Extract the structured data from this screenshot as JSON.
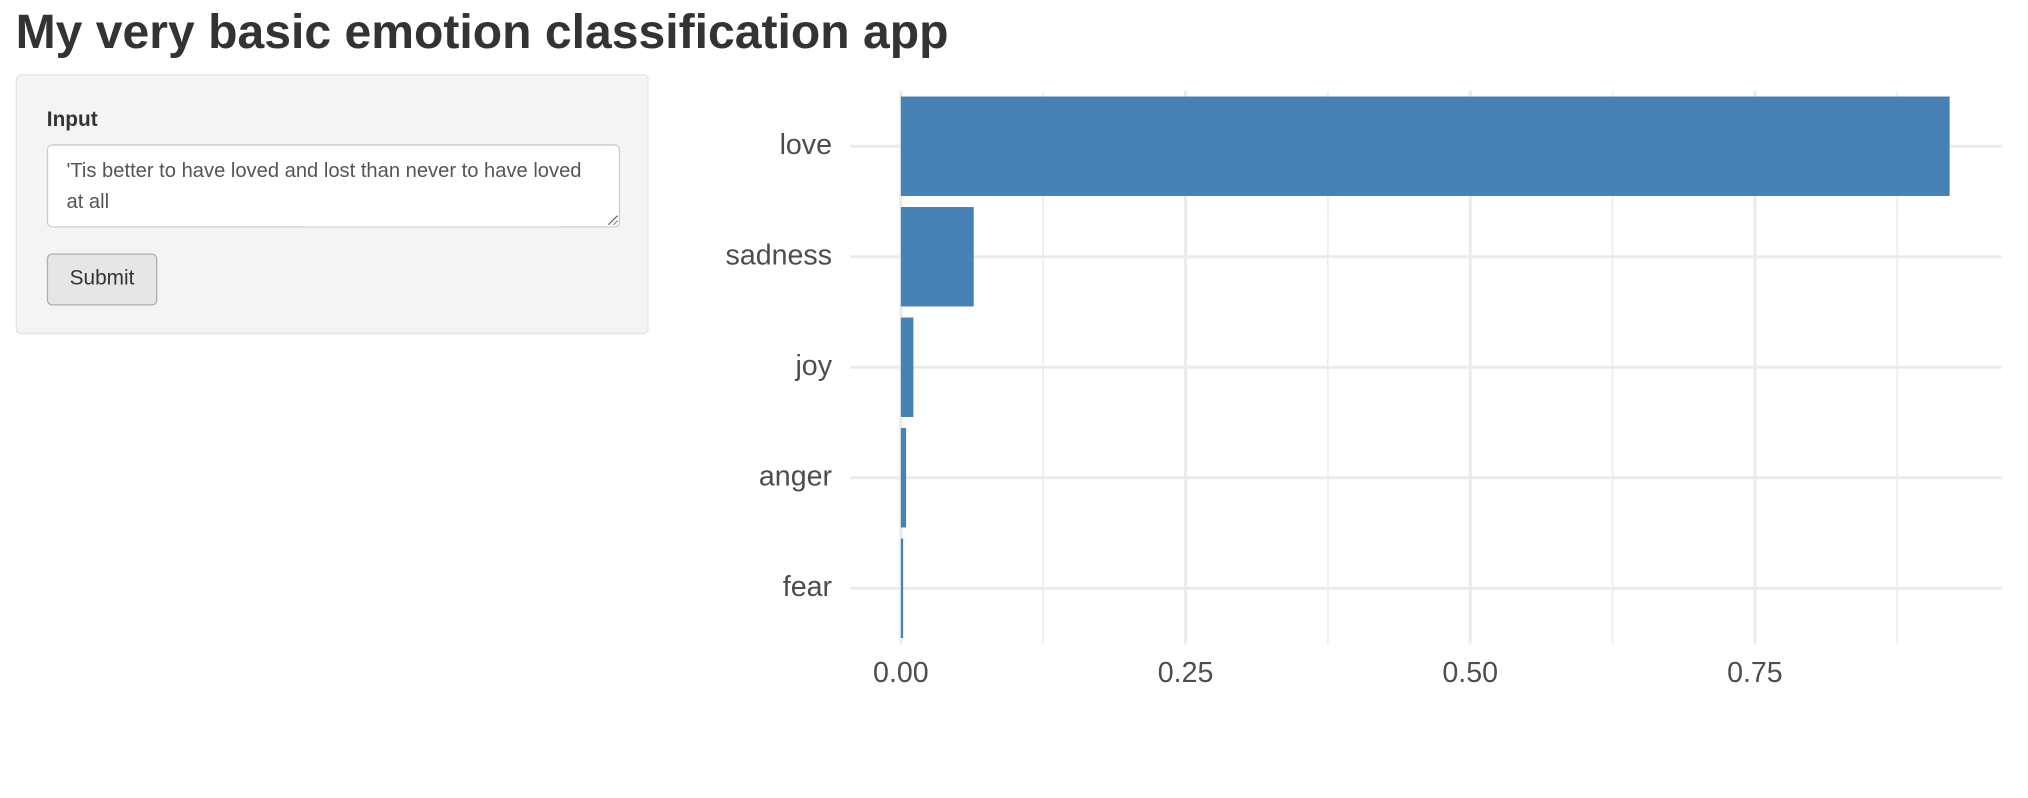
{
  "header": {
    "title": "My very basic emotion classification app"
  },
  "form": {
    "input_label": "Input",
    "input_value": "'Tis better to have loved and lost than never to have loved at all",
    "submit_label": "Submit"
  },
  "chart_data": {
    "type": "bar",
    "orientation": "horizontal",
    "categories": [
      "love",
      "sadness",
      "joy",
      "anger",
      "fear"
    ],
    "values": [
      0.921,
      0.064,
      0.011,
      0.0046,
      0.002
    ],
    "color": "#4682b4",
    "xlim": [
      -0.0445,
      0.967
    ],
    "xticks": [
      {
        "value": 0,
        "label": "0.00"
      },
      {
        "value": 0.25,
        "label": "0.25"
      },
      {
        "value": 0.5,
        "label": "0.50"
      },
      {
        "value": 0.75,
        "label": "0.75"
      }
    ],
    "x_minor_ticks": [
      0.125,
      0.375,
      0.625,
      0.875
    ],
    "grid": true
  }
}
